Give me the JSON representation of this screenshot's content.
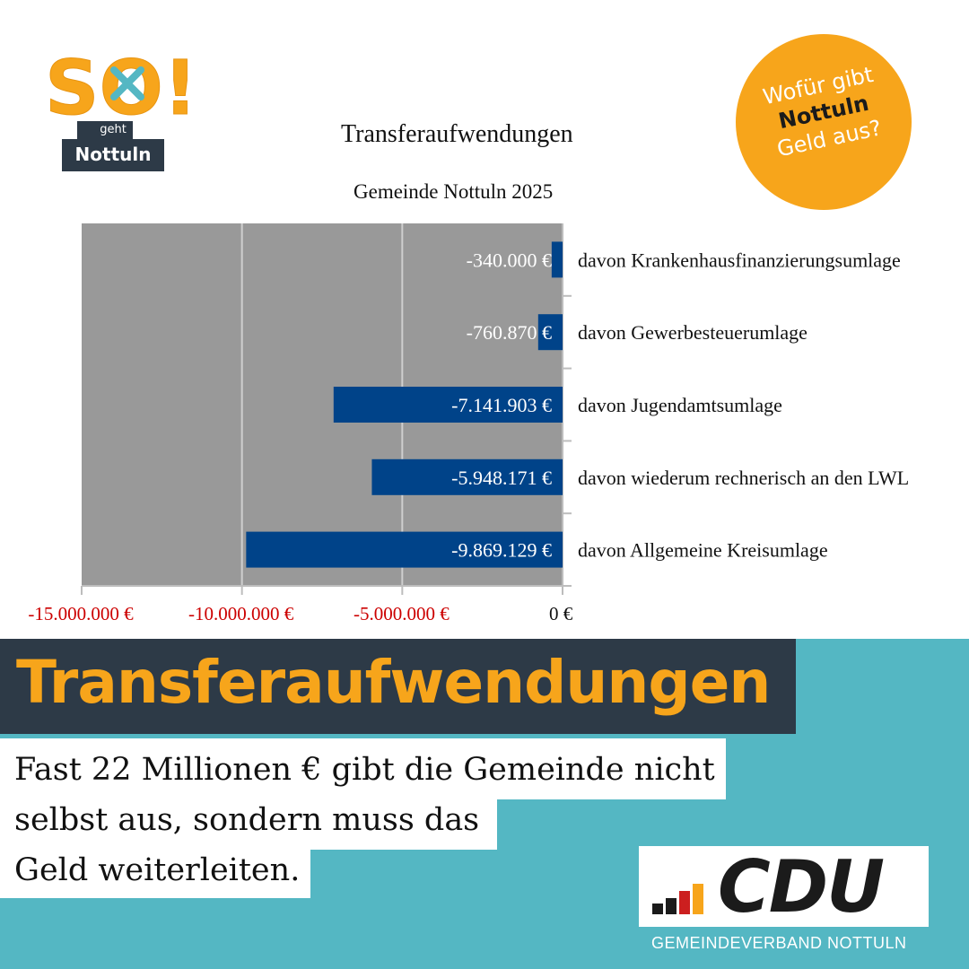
{
  "logo": {
    "word": "SO!",
    "geht": "geht",
    "place": "Nottuln",
    "orange": "#f7a51b",
    "teal": "#54b7c3"
  },
  "badge": {
    "line1": "Wofür gibt",
    "line2": "Nottuln",
    "line3": "Geld aus?",
    "color": "#f7a51b"
  },
  "chart_data": {
    "type": "bar",
    "orientation": "horizontal",
    "title": "Transferaufwendungen",
    "subtitle": "Gemeinde Nottuln 2025",
    "categories": [
      "davon Krankenhausfinanzierungsumlage",
      "davon Gewerbesteuerumlage",
      "davon Jugendamtsumlage",
      "davon wiederum rechnerisch an den LWL",
      "davon Allgemeine Kreisumlage"
    ],
    "values": [
      -340000,
      -760870,
      -7141903,
      -5948171,
      -9869129
    ],
    "value_labels": [
      "-340.000 €",
      "-760.870 €",
      "-7.141.903 €",
      "-5.948.171 €",
      "-9.869.129 €"
    ],
    "xlim": [
      -15000000,
      0
    ],
    "x_ticks": [
      -15000000,
      -10000000,
      -5000000,
      0
    ],
    "x_tick_labels": [
      "-15.000.000 €",
      "-10.000.000 €",
      "-5.000.000 €",
      "0 €"
    ],
    "grid": true,
    "bar_color": "#004389",
    "plot_background": "#999999",
    "negative_tick_color": "#cc0000"
  },
  "heading": "Transferaufwendungen",
  "body_lines": [
    "Fast 22 Millionen € gibt die Gemeinde nicht",
    "selbst aus, sondern muss das",
    "Geld weiterleiten."
  ],
  "cdu": {
    "name": "CDU",
    "subtitle": "GEMEINDEVERBAND NOTTULN",
    "bar_colors": [
      "#1b1b1b",
      "#cc1f1f",
      "#f7a51b"
    ]
  }
}
